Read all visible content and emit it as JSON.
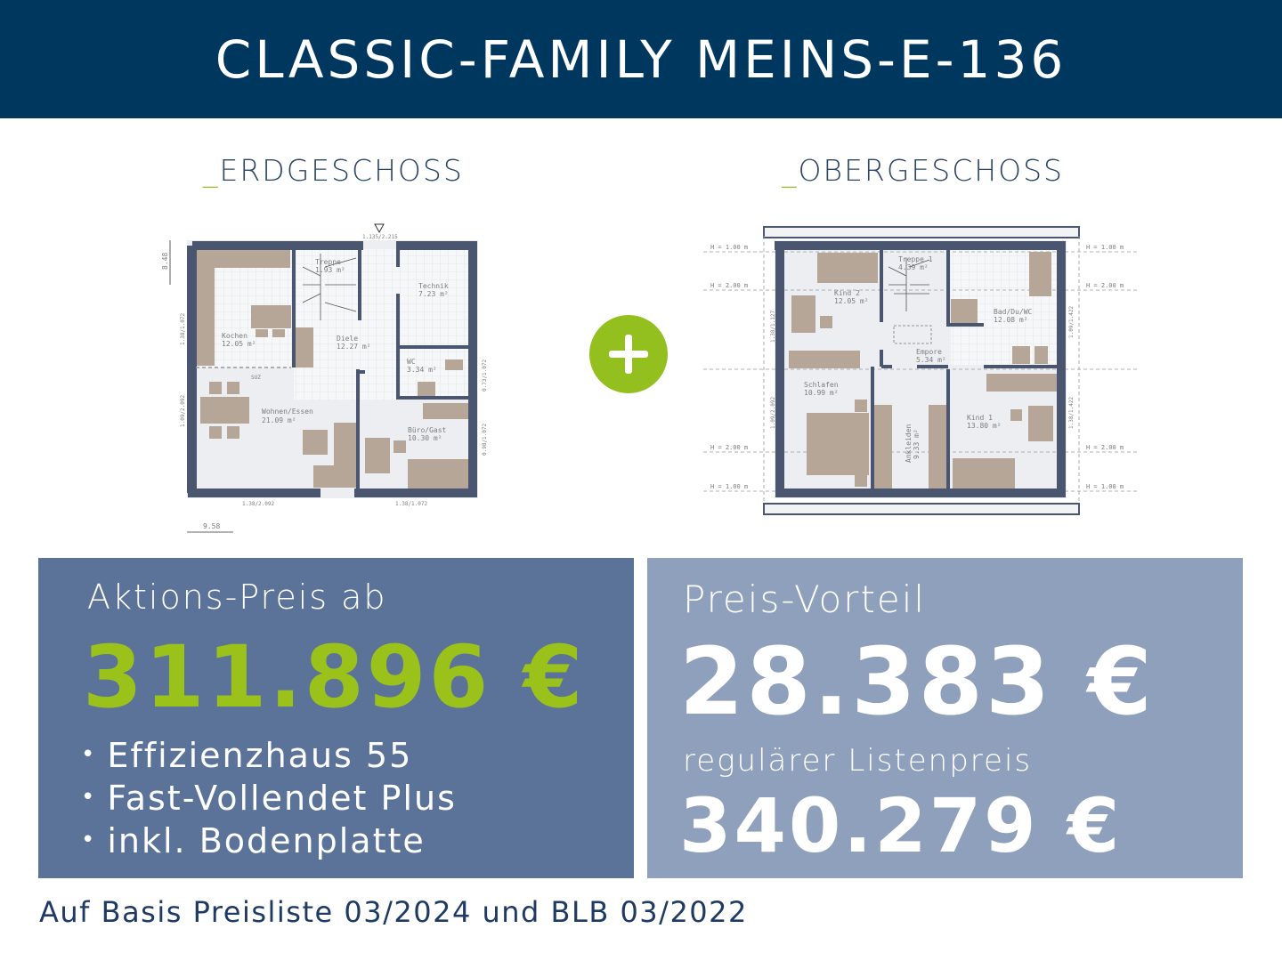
{
  "header": {
    "title": "CLASSIC-FAMILY MEINS-E-136"
  },
  "colors": {
    "navy": "#00375f",
    "accent_green": "#93c01f",
    "panel_dark": "#5b7398",
    "panel_light": "#8fa0bd",
    "wall": "#4a5670",
    "furniture": "#b6a697"
  },
  "floors": {
    "ground": {
      "prefix": "_",
      "title": "ERDGESCHOSS",
      "rooms": [
        {
          "name": "Treppe",
          "area": "1.93 m²"
        },
        {
          "name": "Technik",
          "area": "7.23 m²"
        },
        {
          "name": "Kochen",
          "area": "12.05 m²"
        },
        {
          "name": "Diele",
          "area": "12.27 m²"
        },
        {
          "name": "WC",
          "area": "3.34 m²"
        },
        {
          "name": "Wohnen/Essen",
          "area": "21.09 m²"
        },
        {
          "name": "Büro/Gast",
          "area": "10.30 m²"
        }
      ],
      "dimensions": {
        "entrance": "1.135/2.215",
        "depth": "8.48",
        "width": "9.58",
        "win_left_top": "1.38/1.072",
        "win_left_bottom": "1.09/2.092",
        "win_right_top": "0.73/1.072",
        "win_right_bottom": "0.98/1.072",
        "win_bottom_left": "1.38/2.092",
        "win_bottom_right": "1.38/1.072",
        "suz": "SUZ"
      }
    },
    "upper": {
      "prefix": "_",
      "title": "OBERGESCHOSS",
      "rooms": [
        {
          "name": "Treppe 1",
          "area": "4.39 m²"
        },
        {
          "name": "Kind 2",
          "area": "12.05 m²"
        },
        {
          "name": "Bad/Du/WC",
          "area": "12.08 m²"
        },
        {
          "name": "Empore",
          "area": "5.34 m²"
        },
        {
          "name": "Schlafen",
          "area": "10.99 m²"
        },
        {
          "name": "Ankleiden",
          "area": "9.33 m²"
        },
        {
          "name": "Kind 1",
          "area": "13.80 m²"
        }
      ],
      "heights": {
        "h1": "H = 1.00 m",
        "h2": "H = 2.00 m"
      },
      "dimensions": {
        "win_left_top": "1.38/1.127",
        "win_left_bottom": "1.09/2.092",
        "win_right_top": "1.09/1.422",
        "win_right_bottom": "1.38/1.422"
      }
    }
  },
  "promo": {
    "label": "Aktions-Preis ab",
    "price": "311.896 €",
    "features": [
      "Effizienzhaus 55",
      "Fast-Vollendet Plus",
      "inkl. Bodenplatte"
    ]
  },
  "advantage": {
    "label": "Preis-Vorteil",
    "amount": "28.383 €",
    "list_label": "regulärer Listenpreis",
    "list_price": "340.279 €"
  },
  "footer": {
    "note": "Auf Basis Preisliste 03/2024 und BLB 03/2022"
  }
}
